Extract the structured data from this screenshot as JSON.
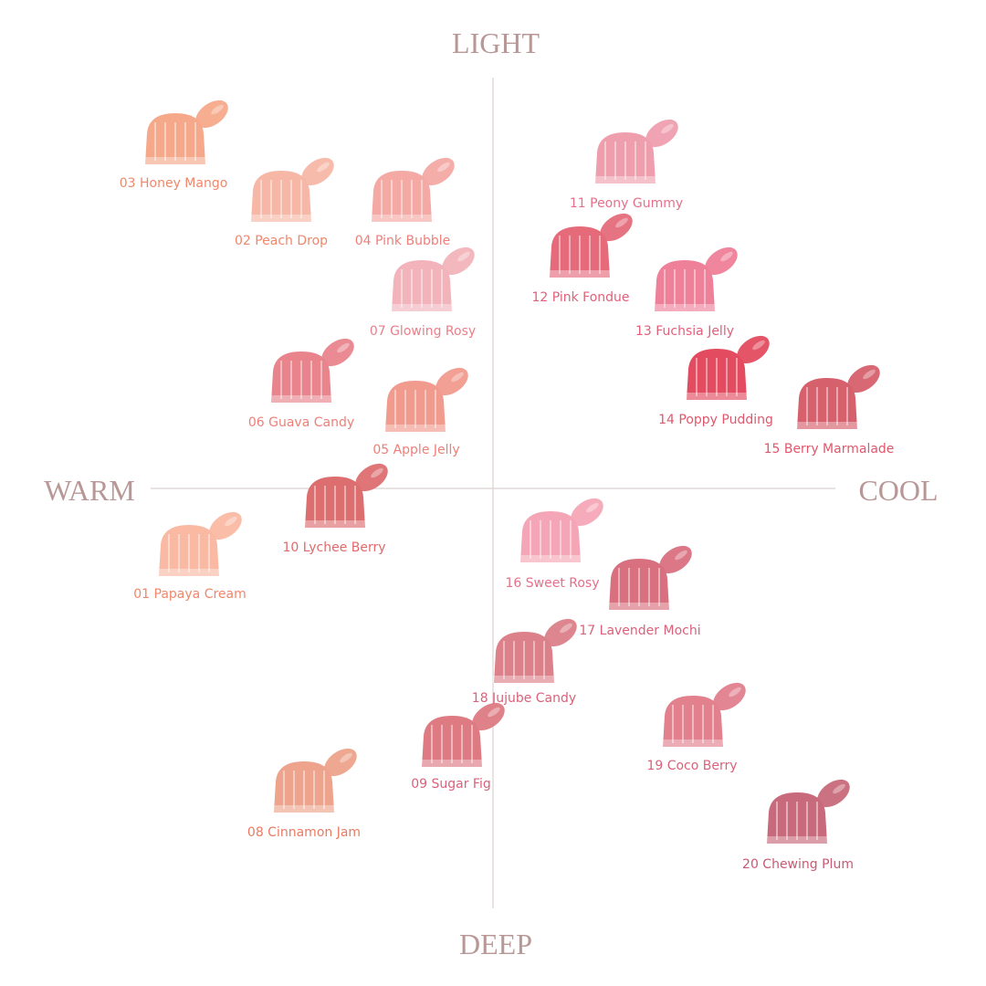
{
  "axes": {
    "top": "LIGHT",
    "bottom": "DEEP",
    "left": "WARM",
    "right": "COOL"
  },
  "shades": [
    {
      "label": "03 Honey Mango",
      "color": "#f5a98a",
      "text_color": "#f0876a"
    },
    {
      "label": "02 Peach Drop",
      "color": "#f7b7a6",
      "text_color": "#f0876a"
    },
    {
      "label": "04 Pink Bubble",
      "color": "#f4a9a4",
      "text_color": "#ee7f78"
    },
    {
      "label": "07 Glowing Rosy",
      "color": "#f2b3ba",
      "text_color": "#ec7e88"
    },
    {
      "label": "06 Guava Candy",
      "color": "#e9848c",
      "text_color": "#ee7f78"
    },
    {
      "label": "05 Apple Jelly",
      "color": "#f19a8e",
      "text_color": "#ee7f78"
    },
    {
      "label": "10 Lychee Berry",
      "color": "#dd6e70",
      "text_color": "#e06a6c"
    },
    {
      "label": "01 Papaya Cream",
      "color": "#f9b9a3",
      "text_color": "#f0876a"
    },
    {
      "label": "11 Peony Gummy",
      "color": "#ef9eae",
      "text_color": "#e66f8a"
    },
    {
      "label": "12 Pink Fondue",
      "color": "#e56b7b",
      "text_color": "#e2607a"
    },
    {
      "label": "13 Fuchsia Jelly",
      "color": "#ef8099",
      "text_color": "#e2607a"
    },
    {
      "label": "14 Poppy Pudding",
      "color": "#e34c60",
      "text_color": "#e2566c"
    },
    {
      "label": "15 Berry Marmalade",
      "color": "#d6606c",
      "text_color": "#e2566c"
    },
    {
      "label": "16 Sweet Rosy",
      "color": "#f5a6b6",
      "text_color": "#e66f8a"
    },
    {
      "label": "17 Lavender Mochi",
      "color": "#d9707f",
      "text_color": "#d9627a"
    },
    {
      "label": "18 Jujube Candy",
      "color": "#dc8089",
      "text_color": "#d9627a"
    },
    {
      "label": "09 Sugar Fig",
      "color": "#dd7a82",
      "text_color": "#d9627a"
    },
    {
      "label": "19 Coco Berry",
      "color": "#e2808e",
      "text_color": "#d9627a"
    },
    {
      "label": "08 Cinnamon Jam",
      "color": "#eda38c",
      "text_color": "#e97a62"
    },
    {
      "label": "20 Chewing Plum",
      "color": "#c86a7b",
      "text_color": "#c95a72"
    }
  ]
}
